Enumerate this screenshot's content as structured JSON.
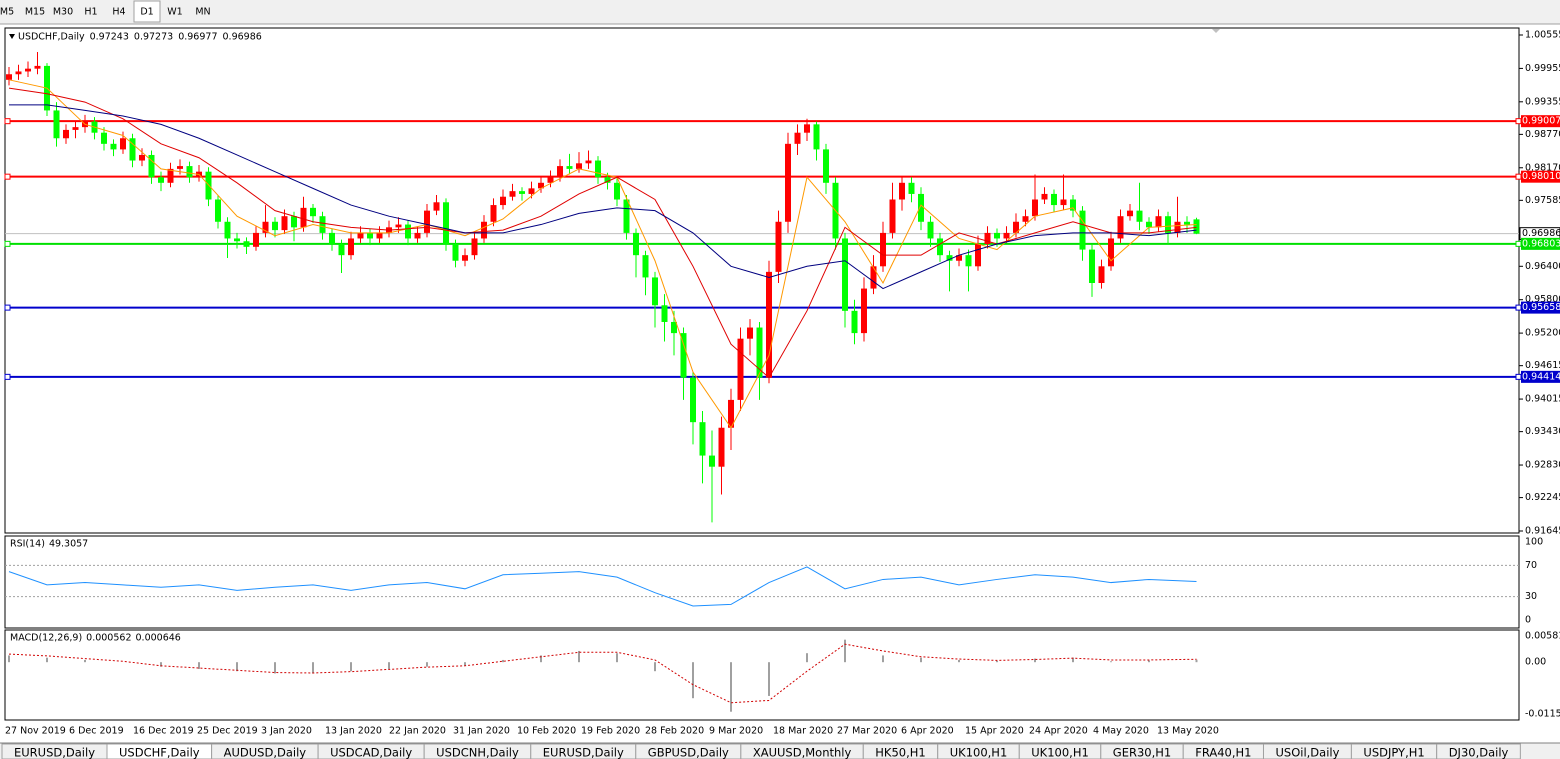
{
  "toolbar": [
    "M5",
    "M15",
    "M30",
    "H1",
    "H4",
    "D1",
    "W1",
    "MN"
  ],
  "toolbar_active": 5,
  "tabs": [
    "EURUSD,Daily",
    "USDCHF,Daily",
    "AUDUSD,Daily",
    "USDCAD,Daily",
    "USDCNH,Daily",
    "EURUSD,Daily",
    "GBPUSD,Daily",
    "XAUUSD,Monthly",
    "HK50,H1",
    "UK100,H1",
    "UK100,H1",
    "GER30,H1",
    "FRA40,H1",
    "USOil,Daily",
    "USDJPY,H1",
    "DJ30,Daily"
  ],
  "tabs_active": 1,
  "chart_data": [
    {
      "type": "candlestick",
      "symbol": "USDCHF,Daily",
      "up_color": "#ff0000",
      "down_color": "#00ff00",
      "current_color": "#c0c0c0",
      "candles": [
        [
          0.9975,
          0.9998,
          0.9965,
          0.9985
        ],
        [
          0.9985,
          1.0002,
          0.9975,
          0.999
        ],
        [
          0.999,
          1.0008,
          0.998,
          0.9995
        ],
        [
          0.9995,
          1.0025,
          0.9985,
          1.0
        ],
        [
          1.0,
          1.0005,
          0.991,
          0.992
        ],
        [
          0.992,
          0.9935,
          0.9855,
          0.987
        ],
        [
          0.987,
          0.9895,
          0.986,
          0.9885
        ],
        [
          0.9885,
          0.99,
          0.987,
          0.989
        ],
        [
          0.989,
          0.9912,
          0.988,
          0.99
        ],
        [
          0.99,
          0.9908,
          0.9868,
          0.988
        ],
        [
          0.988,
          0.989,
          0.9848,
          0.986
        ],
        [
          0.986,
          0.9868,
          0.9838,
          0.985
        ],
        [
          0.985,
          0.9882,
          0.9842,
          0.987
        ],
        [
          0.987,
          0.9878,
          0.9818,
          0.983
        ],
        [
          0.983,
          0.9852,
          0.982,
          0.984
        ],
        [
          0.984,
          0.9848,
          0.9788,
          0.98
        ],
        [
          0.98,
          0.981,
          0.9775,
          0.979
        ],
        [
          0.979,
          0.9826,
          0.9782,
          0.9815
        ],
        [
          0.9815,
          0.9832,
          0.9805,
          0.982
        ],
        [
          0.982,
          0.9828,
          0.979,
          0.98
        ],
        [
          0.98,
          0.9822,
          0.9792,
          0.981
        ],
        [
          0.981,
          0.9818,
          0.9748,
          0.976
        ],
        [
          0.976,
          0.9768,
          0.9708,
          0.972
        ],
        [
          0.972,
          0.9728,
          0.9655,
          0.969
        ],
        [
          0.969,
          0.97,
          0.9672,
          0.9685
        ],
        [
          0.9685,
          0.9692,
          0.9662,
          0.9675
        ],
        [
          0.9675,
          0.9712,
          0.9668,
          0.97
        ],
        [
          0.97,
          0.975,
          0.9692,
          0.972
        ],
        [
          0.972,
          0.9728,
          0.9692,
          0.9705
        ],
        [
          0.9705,
          0.9742,
          0.9698,
          0.973
        ],
        [
          0.973,
          0.9738,
          0.9685,
          0.971
        ],
        [
          0.971,
          0.9765,
          0.9702,
          0.9745
        ],
        [
          0.9745,
          0.9752,
          0.9718,
          0.973
        ],
        [
          0.973,
          0.9738,
          0.9688,
          0.97
        ],
        [
          0.97,
          0.9708,
          0.9668,
          0.968
        ],
        [
          0.968,
          0.9688,
          0.9628,
          0.966
        ],
        [
          0.966,
          0.9702,
          0.9652,
          0.969
        ],
        [
          0.969,
          0.9712,
          0.9682,
          0.97
        ],
        [
          0.97,
          0.9708,
          0.9678,
          0.969
        ],
        [
          0.969,
          0.9712,
          0.9682,
          0.97
        ],
        [
          0.97,
          0.9722,
          0.9692,
          0.971
        ],
        [
          0.971,
          0.9728,
          0.97,
          0.9715
        ],
        [
          0.9715,
          0.9722,
          0.9678,
          0.969
        ],
        [
          0.969,
          0.9712,
          0.9682,
          0.97
        ],
        [
          0.97,
          0.9752,
          0.9692,
          0.974
        ],
        [
          0.974,
          0.9768,
          0.9732,
          0.9755
        ],
        [
          0.9755,
          0.9762,
          0.9668,
          0.968
        ],
        [
          0.968,
          0.9688,
          0.9638,
          0.965
        ],
        [
          0.965,
          0.9672,
          0.964,
          0.966
        ],
        [
          0.966,
          0.9702,
          0.9652,
          0.969
        ],
        [
          0.969,
          0.9732,
          0.9682,
          0.972
        ],
        [
          0.972,
          0.9762,
          0.9712,
          0.975
        ],
        [
          0.975,
          0.9778,
          0.9742,
          0.9765
        ],
        [
          0.9765,
          0.9788,
          0.9758,
          0.9775
        ],
        [
          0.9775,
          0.9782,
          0.9758,
          0.977
        ],
        [
          0.977,
          0.9792,
          0.9762,
          0.978
        ],
        [
          0.978,
          0.9802,
          0.9772,
          0.979
        ],
        [
          0.979,
          0.9812,
          0.9782,
          0.98
        ],
        [
          0.98,
          0.9832,
          0.9792,
          0.982
        ],
        [
          0.982,
          0.9842,
          0.9805,
          0.9815
        ],
        [
          0.9815,
          0.9845,
          0.9808,
          0.9825
        ],
        [
          0.9825,
          0.9848,
          0.9815,
          0.983
        ],
        [
          0.983,
          0.9838,
          0.9788,
          0.98
        ],
        [
          0.98,
          0.9808,
          0.9778,
          0.979
        ],
        [
          0.979,
          0.9798,
          0.9748,
          0.976
        ],
        [
          0.976,
          0.9768,
          0.9688,
          0.97
        ],
        [
          0.97,
          0.9708,
          0.962,
          0.966
        ],
        [
          0.966,
          0.9668,
          0.9588,
          0.962
        ],
        [
          0.962,
          0.963,
          0.953,
          0.957
        ],
        [
          0.957,
          0.959,
          0.9505,
          0.954
        ],
        [
          0.954,
          0.956,
          0.948,
          0.952
        ],
        [
          0.952,
          0.953,
          0.94,
          0.944
        ],
        [
          0.944,
          0.945,
          0.932,
          0.936
        ],
        [
          0.936,
          0.938,
          0.925,
          0.93
        ],
        [
          0.93,
          0.9345,
          0.918,
          0.928
        ],
        [
          0.928,
          0.937,
          0.923,
          0.935
        ],
        [
          0.935,
          0.942,
          0.931,
          0.94
        ],
        [
          0.94,
          0.953,
          0.938,
          0.951
        ],
        [
          0.951,
          0.9545,
          0.948,
          0.953
        ],
        [
          0.953,
          0.954,
          0.94,
          0.944
        ],
        [
          0.944,
          0.965,
          0.943,
          0.963
        ],
        [
          0.963,
          0.974,
          0.961,
          0.972
        ],
        [
          0.972,
          0.988,
          0.97,
          0.986
        ],
        [
          0.986,
          0.9895,
          0.984,
          0.988
        ],
        [
          0.988,
          0.9905,
          0.9865,
          0.9895
        ],
        [
          0.9895,
          0.99,
          0.983,
          0.985
        ],
        [
          0.985,
          0.986,
          0.977,
          0.979
        ],
        [
          0.979,
          0.98,
          0.967,
          0.969
        ],
        [
          0.969,
          0.97,
          0.953,
          0.956
        ],
        [
          0.956,
          0.958,
          0.95,
          0.952
        ],
        [
          0.952,
          0.962,
          0.9505,
          0.96
        ],
        [
          0.96,
          0.966,
          0.959,
          0.964
        ],
        [
          0.964,
          0.972,
          0.963,
          0.97
        ],
        [
          0.97,
          0.979,
          0.969,
          0.976
        ],
        [
          0.976,
          0.98,
          0.974,
          0.979
        ],
        [
          0.979,
          0.98,
          0.9755,
          0.977
        ],
        [
          0.977,
          0.9782,
          0.9705,
          0.972
        ],
        [
          0.972,
          0.973,
          0.9675,
          0.969
        ],
        [
          0.969,
          0.97,
          0.9648,
          0.966
        ],
        [
          0.966,
          0.9668,
          0.9595,
          0.965
        ],
        [
          0.965,
          0.9672,
          0.964,
          0.966
        ],
        [
          0.966,
          0.967,
          0.9595,
          0.964
        ],
        [
          0.964,
          0.9695,
          0.9632,
          0.968
        ],
        [
          0.968,
          0.9712,
          0.9672,
          0.97
        ],
        [
          0.97,
          0.9708,
          0.9675,
          0.969
        ],
        [
          0.969,
          0.9712,
          0.9682,
          0.97
        ],
        [
          0.97,
          0.9735,
          0.9692,
          0.972
        ],
        [
          0.972,
          0.9742,
          0.9712,
          0.973
        ],
        [
          0.973,
          0.9805,
          0.9722,
          0.976
        ],
        [
          0.976,
          0.9782,
          0.9752,
          0.977
        ],
        [
          0.977,
          0.9778,
          0.9738,
          0.975
        ],
        [
          0.975,
          0.9805,
          0.9742,
          0.976
        ],
        [
          0.976,
          0.9768,
          0.9728,
          0.974
        ],
        [
          0.974,
          0.9748,
          0.965,
          0.967
        ],
        [
          0.967,
          0.968,
          0.9585,
          0.961
        ],
        [
          0.961,
          0.9652,
          0.96,
          0.964
        ],
        [
          0.964,
          0.9702,
          0.9632,
          0.969
        ],
        [
          0.969,
          0.9742,
          0.9682,
          0.973
        ],
        [
          0.973,
          0.9752,
          0.9722,
          0.974
        ],
        [
          0.974,
          0.979,
          0.9705,
          0.972
        ],
        [
          0.972,
          0.9728,
          0.9698,
          0.971
        ],
        [
          0.971,
          0.9742,
          0.9702,
          0.973
        ],
        [
          0.973,
          0.9738,
          0.968,
          0.97
        ],
        [
          0.97,
          0.9765,
          0.9692,
          0.972
        ],
        [
          0.972,
          0.973,
          0.97,
          0.9715
        ],
        [
          0.97243,
          0.97273,
          0.96977,
          0.96986
        ]
      ],
      "x": [
        0,
        4,
        8,
        12,
        16,
        20,
        24,
        28,
        32,
        36,
        40,
        44,
        48,
        52,
        56,
        60,
        64,
        68,
        72,
        76,
        80,
        84,
        88,
        92,
        96,
        100,
        104,
        108,
        112,
        116,
        120,
        125
      ],
      "moving_averages": [
        {
          "color": "#ff9900",
          "values": [
            0.9975,
            0.996,
            0.9895,
            0.9875,
            0.9815,
            0.9805,
            0.973,
            0.9695,
            0.9715,
            0.97,
            0.97,
            0.9715,
            0.9695,
            0.9725,
            0.978,
            0.9815,
            0.98,
            0.965,
            0.945,
            0.935,
            0.948,
            0.98,
            0.972,
            0.961,
            0.975,
            0.969,
            0.967,
            0.973,
            0.9745,
            0.965,
            0.971,
            0.9715
          ]
        },
        {
          "color": "#e00000",
          "values": [
            0.996,
            0.995,
            0.9935,
            0.9905,
            0.986,
            0.9835,
            0.979,
            0.974,
            0.972,
            0.971,
            0.9705,
            0.971,
            0.97,
            0.9705,
            0.973,
            0.977,
            0.98,
            0.976,
            0.964,
            0.95,
            0.944,
            0.956,
            0.971,
            0.966,
            0.966,
            0.97,
            0.968,
            0.97,
            0.972,
            0.97,
            0.97,
            0.971
          ]
        },
        {
          "color": "#000080",
          "values": [
            0.993,
            0.993,
            0.992,
            0.991,
            0.9895,
            0.987,
            0.984,
            0.981,
            0.978,
            0.975,
            0.973,
            0.9715,
            0.97,
            0.97,
            0.9715,
            0.9735,
            0.9745,
            0.974,
            0.97,
            0.964,
            0.962,
            0.964,
            0.965,
            0.96,
            0.963,
            0.966,
            0.968,
            0.9695,
            0.97,
            0.97,
            0.9695,
            0.9705
          ]
        }
      ],
      "levels": [
        {
          "price": 0.99007,
          "color": "#ff0000"
        },
        {
          "price": 0.9801,
          "label": "0.98010",
          "color": "#ff0000"
        },
        {
          "price": 0.96803,
          "color": "#00e000"
        },
        {
          "price": 0.95658,
          "color": "#0000cc"
        },
        {
          "price": 0.94414,
          "color": "#0000cc"
        }
      ],
      "ylim": [
        0.91645,
        1.00555
      ],
      "yticks": [
        1.00555,
        0.99955,
        0.99355,
        {
          "value": 0.9877,
          "label": "0.98770"
        },
        {
          "value": 0.9817,
          "label": "0.98170"
        },
        0.97585,
        {
          "value": 0.964,
          "label": "0.96400"
        },
        {
          "value": 0.958,
          "label": "0.95800"
        },
        {
          "value": 0.952,
          "label": "0.95200"
        },
        0.94615,
        0.94015,
        {
          "value": 0.9343,
          "label": "0.93430"
        },
        {
          "value": 0.9283,
          "label": "0.92830"
        },
        0.92245,
        0.91645
      ],
      "x_labels": [
        "27 Nov 2019",
        "6 Dec 2019",
        "16 Dec 2019",
        "25 Dec 2019",
        "3 Jan 2020",
        "13 Jan 2020",
        "22 Jan 2020",
        "31 Jan 2020",
        "10 Feb 2020",
        "19 Feb 2020",
        "28 Feb 2020",
        "9 Mar 2020",
        "18 Mar 2020",
        "27 Mar 2020",
        "6 Apr 2020",
        "15 Apr 2020",
        "24 Apr 2020",
        "4 May 2020",
        "13 May 2020"
      ]
    },
    {
      "type": "line",
      "title": "RSI(14)",
      "color": "#1e90ff",
      "ylim": [
        0,
        100
      ],
      "yticks": [
        100,
        70,
        30,
        0
      ],
      "level_ticks": [
        1,
        2
      ],
      "values": [
        62,
        45,
        48,
        45,
        42,
        45,
        38,
        42,
        45,
        38,
        45,
        48,
        40,
        58,
        60,
        62,
        55,
        35,
        18,
        20,
        48,
        68,
        40,
        52,
        55,
        45,
        52,
        58,
        55,
        48,
        52,
        49.3057
      ]
    },
    {
      "type": "macd",
      "title": "MACD(12,26,9)",
      "hist_color": "#a0a0a0",
      "signal_color": "#d00000",
      "ylim": [
        -0.01151,
        0.005818
      ],
      "yticks": [
        0.005818,
        {
          "value": 0,
          "label": "0.00"
        },
        -0.01151
      ],
      "histogram": [
        0.0015,
        0.001,
        0.0005,
        0,
        -0.001,
        -0.0015,
        -0.002,
        -0.0025,
        -0.0025,
        -0.002,
        -0.0015,
        -0.001,
        -0.0008,
        0.0005,
        0.0015,
        0.0025,
        0.002,
        -0.002,
        -0.008,
        -0.011,
        -0.0075,
        0.002,
        0.005,
        0.0015,
        0.001,
        0.0005,
        0.0003,
        0.0008,
        0.001,
        0.0002,
        0.0004,
        0.000562
      ],
      "signal": [
        0.0018,
        0.0014,
        0.0008,
        0.0002,
        -0.0008,
        -0.0013,
        -0.0018,
        -0.0023,
        -0.0024,
        -0.0021,
        -0.0016,
        -0.0011,
        -0.0008,
        0.0002,
        0.0012,
        0.0022,
        0.0022,
        0.0005,
        -0.005,
        -0.009,
        -0.0085,
        -0.002,
        0.004,
        0.0025,
        0.0012,
        0.0007,
        0.0004,
        0.0006,
        0.0009,
        0.0005,
        0.0005,
        0.000646
      ]
    }
  ]
}
